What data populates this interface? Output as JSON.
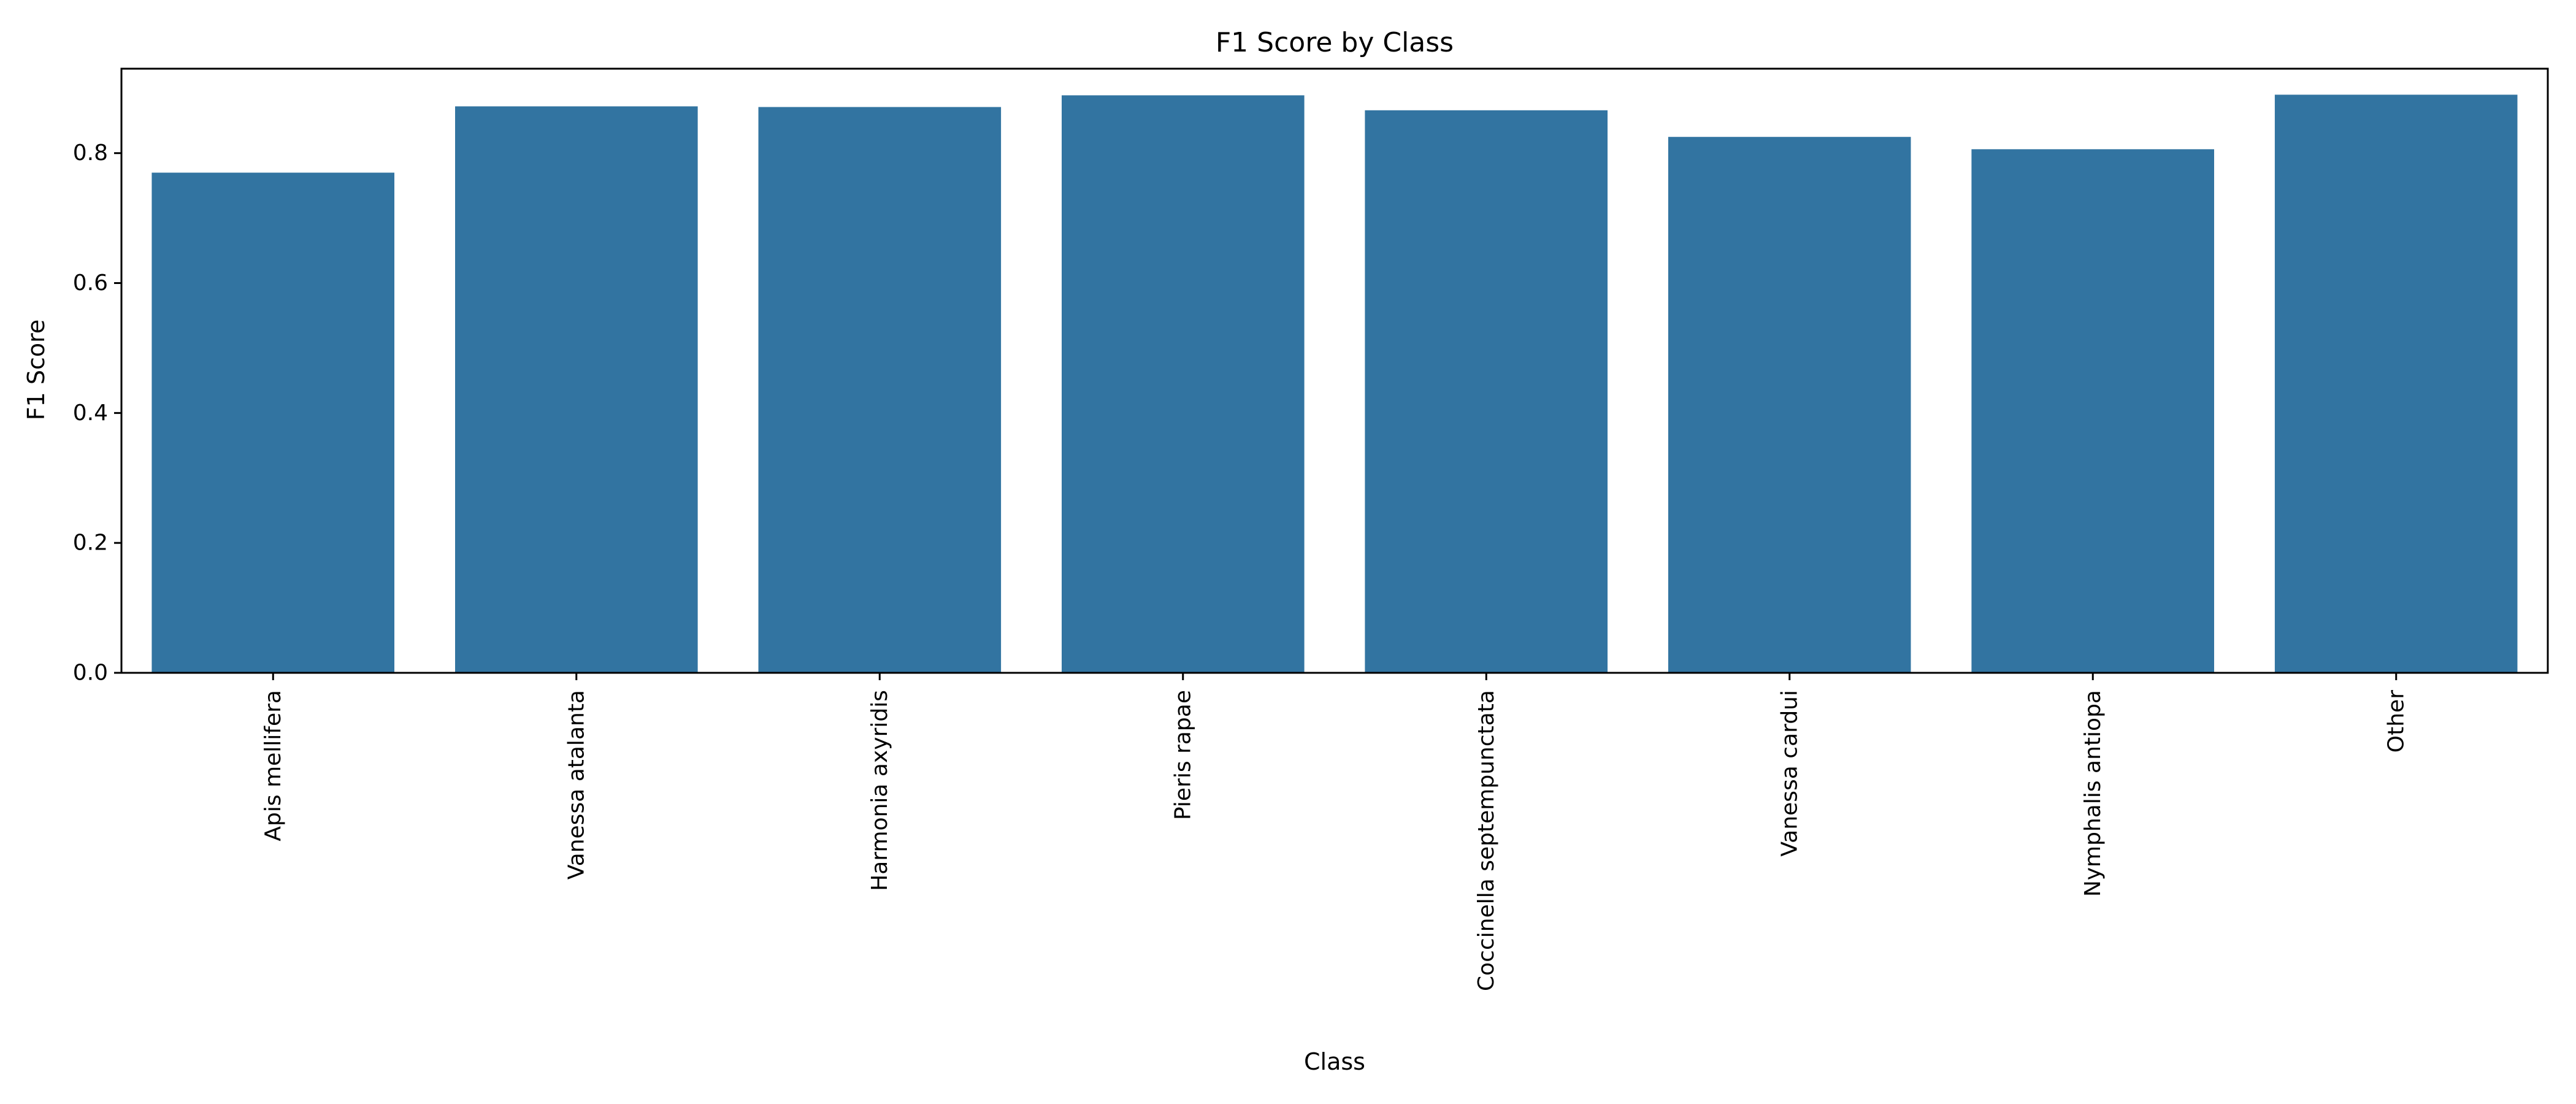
{
  "chart_data": {
    "type": "bar",
    "title": "F1 Score by Class",
    "xlabel": "Class",
    "ylabel": "F1 Score",
    "categories": [
      "Apis mellifera",
      "Vanessa atalanta",
      "Harmonia axyridis",
      "Pieris rapae",
      "Coccinella septempunctata",
      "Vanessa cardui",
      "Nymphalis antiopa",
      "Other"
    ],
    "values": [
      0.77,
      0.872,
      0.871,
      0.889,
      0.866,
      0.825,
      0.806,
      0.89
    ],
    "ylim": [
      0,
      0.93
    ],
    "yticks": [
      "0.0",
      "0.2",
      "0.4",
      "0.6",
      "0.8"
    ],
    "grid": false,
    "bar_color": "#3274a1"
  }
}
